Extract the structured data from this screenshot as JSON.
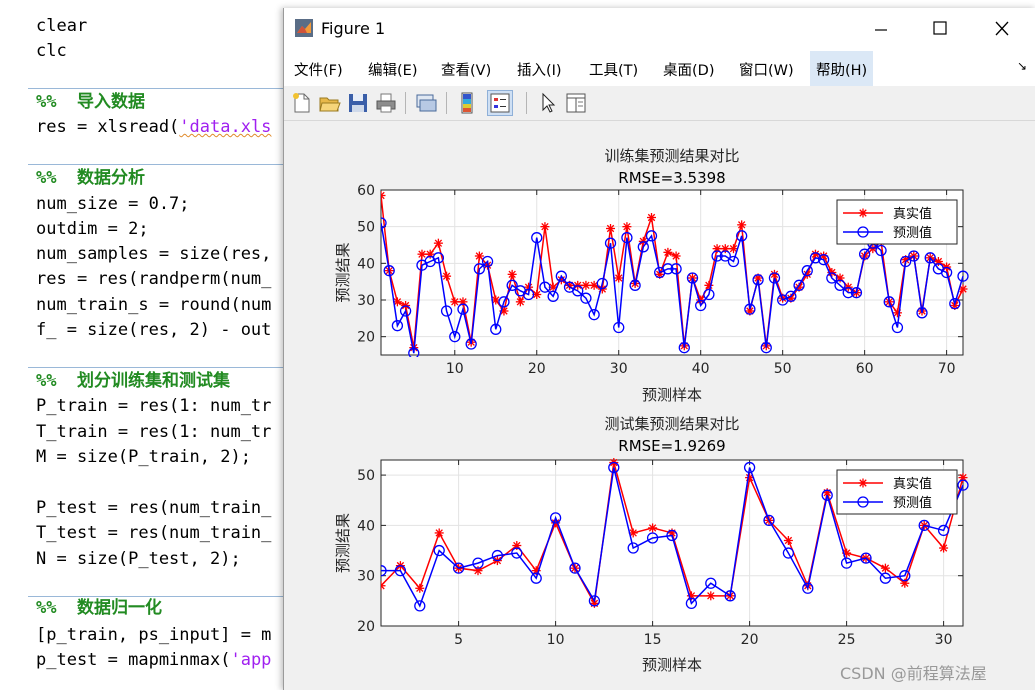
{
  "editor": {
    "line_clear": "clear",
    "line_clc": "clc",
    "sec1_pct": "%%",
    "sec1_title": "导入数据",
    "line_res_a": "res = xlsread(",
    "line_res_str": "'data.xls",
    "sec2_pct": "%%",
    "sec2_title": "数据分析",
    "line_num_size": "num_size = 0.7;",
    "line_outdim": "outdim = 2;",
    "line_num_samples": "num_samples = size(res,",
    "line_res_perm": "res = res(randperm(num_",
    "line_num_train": "num_train_s = round(num",
    "line_f": "f_ = size(res, 2) - out",
    "sec3_pct": "%%",
    "sec3_title": "划分训练集和测试集",
    "line_ptrain": "P_train = res(1: num_tr",
    "line_ttrain": "T_train = res(1: num_tr",
    "line_m": "M = size(P_train, 2);",
    "line_ptest": "P_test = res(num_train_",
    "line_ttest": "T_test = res(num_train_",
    "line_n": "N = size(P_test, 2);",
    "sec4_pct": "%%",
    "sec4_title": "数据归一化",
    "line_pinput": "[p_train, ps_input] = m",
    "line_ptest2_a": "p_test = mapminmax(",
    "line_ptest2_str": "'app"
  },
  "window": {
    "title": "Figure 1",
    "min_icon": "minimize-icon",
    "max_icon": "maximize-icon",
    "close_icon": "close-icon"
  },
  "menu": [
    "文件(F)",
    "编辑(E)",
    "查看(V)",
    "插入(I)",
    "工具(T)",
    "桌面(D)",
    "窗口(W)",
    "帮助(H)"
  ],
  "menu_arrow": "↘",
  "toolbar_icons": [
    "new-figure-icon",
    "open-file-icon",
    "save-icon",
    "print-icon",
    "link-figure-icon",
    "insert-colorbar-icon",
    "insert-legend-icon",
    "pointer-icon",
    "property-editor-icon"
  ],
  "colors": {
    "true_series": "#ff0000",
    "pred_series": "#0000ff",
    "menu_highlight": "#dbe8f6"
  },
  "watermark": "CSDN @前程算法屋",
  "chart_data": [
    {
      "type": "line",
      "title": "训练集预测结果对比",
      "subtitle": "RMSE=3.5398",
      "xlabel": "预测样本",
      "ylabel": "预测结果",
      "xlim": [
        1,
        72
      ],
      "ylim": [
        15,
        60
      ],
      "xticks": [
        10,
        20,
        30,
        40,
        50,
        60,
        70
      ],
      "yticks": [
        20,
        30,
        40,
        50,
        60
      ],
      "grid": true,
      "legend_position": "top-right",
      "series": [
        {
          "name": "真实值",
          "color": "#ff0000",
          "marker": "star",
          "values": [
            58.5,
            38,
            29.5,
            28.5,
            17,
            42.5,
            42.5,
            45.5,
            36.5,
            29.5,
            29.5,
            18.5,
            42,
            39.5,
            30,
            27,
            37,
            29.5,
            33.5,
            31.5,
            50,
            33.5,
            35.5,
            34,
            34,
            34,
            34,
            33,
            49.5,
            36,
            50,
            34.5,
            46,
            52.5,
            37,
            43,
            42,
            17.5,
            36,
            30,
            34,
            44,
            44,
            44,
            50.5,
            27,
            36,
            17.5,
            37,
            30.5,
            30.5,
            33.5,
            37,
            42.5,
            42,
            37.5,
            36,
            33.5,
            32,
            42,
            44,
            46,
            29.5,
            26.5,
            41,
            42,
            27,
            41.5,
            40.5,
            39,
            28.5,
            33
          ]
        },
        {
          "name": "预测值",
          "color": "#0000ff",
          "marker": "circle",
          "values": [
            51,
            38,
            23,
            27,
            15.5,
            39.5,
            40.5,
            41.5,
            27,
            20,
            27.5,
            18,
            38.5,
            40.5,
            22,
            29.5,
            34,
            32.5,
            31.5,
            47,
            33.5,
            31,
            36.5,
            33.5,
            32.5,
            30.5,
            26,
            34.5,
            45.5,
            22.5,
            47,
            34,
            44.5,
            47.5,
            37.5,
            38.5,
            38.5,
            17,
            36,
            28.5,
            31.5,
            42,
            42,
            40.5,
            47.5,
            27.5,
            35.5,
            17,
            36,
            30,
            31,
            34,
            38,
            41.5,
            41,
            36,
            34,
            32,
            32,
            42.5,
            45.5,
            43.5,
            29.5,
            22.5,
            40.5,
            42,
            26.5,
            41.5,
            38.5,
            37.5,
            29,
            36.5
          ]
        }
      ]
    },
    {
      "type": "line",
      "title": "测试集预测结果对比",
      "subtitle": "RMSE=1.9269",
      "xlabel": "预测样本",
      "ylabel": "预测结果",
      "xlim": [
        1,
        31
      ],
      "ylim": [
        20,
        53
      ],
      "xticks": [
        5,
        10,
        15,
        20,
        25,
        30
      ],
      "yticks": [
        20,
        30,
        40,
        50
      ],
      "grid": true,
      "legend_position": "top-right",
      "series": [
        {
          "name": "真实值",
          "color": "#ff0000",
          "marker": "star",
          "values": [
            28,
            32,
            27.5,
            38.5,
            31.5,
            31,
            33,
            36,
            31,
            40.5,
            31.5,
            24.5,
            52.5,
            38.5,
            39.5,
            38.5,
            26,
            26,
            26,
            49.5,
            41,
            37,
            28,
            46.5,
            34.5,
            33.5,
            31.5,
            28.5,
            40,
            35.5,
            49.5
          ]
        },
        {
          "name": "预测值",
          "color": "#0000ff",
          "marker": "circle",
          "values": [
            31,
            31,
            24,
            35,
            31.5,
            32.5,
            34,
            34.5,
            29.5,
            41.5,
            31.5,
            25,
            51.5,
            35.5,
            37.5,
            38,
            24.5,
            28.5,
            26,
            51.5,
            41,
            34.5,
            27.5,
            46,
            32.5,
            33.5,
            29.5,
            30,
            40,
            39,
            48
          ]
        }
      ]
    }
  ]
}
